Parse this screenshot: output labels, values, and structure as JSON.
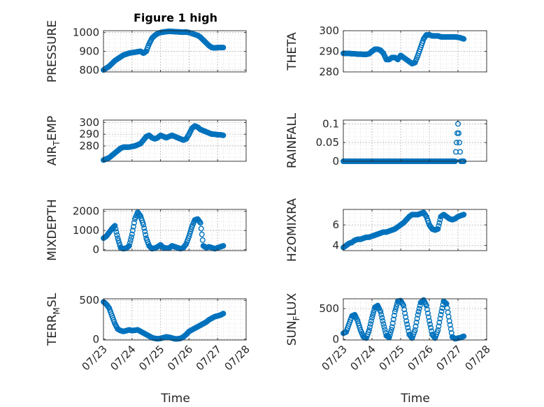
{
  "figure": {
    "title": "Figure 1 high",
    "xlabel": "Time"
  },
  "colors": {
    "marker": "#0072BD",
    "axis": "#262626",
    "grid": "#b8b8b8"
  },
  "chart_data": [
    {
      "type": "scatter",
      "ylabel": "PRESSURE",
      "ylim": [
        790,
        1010
      ],
      "yticks": [
        800,
        900,
        1000
      ],
      "xlim": [
        0,
        5
      ],
      "grid": true,
      "x": [
        0,
        0.1,
        0.2,
        0.3,
        0.4,
        0.5,
        0.6,
        0.7,
        0.8,
        0.9,
        1.0,
        1.1,
        1.2,
        1.3,
        1.4,
        1.5,
        1.6,
        1.7,
        1.8,
        1.9,
        2.0,
        2.1,
        2.2,
        2.3,
        2.4,
        2.5,
        2.6,
        2.7,
        2.8,
        2.9,
        3.0,
        3.1,
        3.2,
        3.3,
        3.4,
        3.5,
        3.6,
        3.7,
        3.8,
        3.9,
        4.0,
        4.1,
        4.2
      ],
      "y": [
        800,
        810,
        820,
        835,
        850,
        860,
        870,
        880,
        885,
        890,
        893,
        895,
        898,
        900,
        890,
        900,
        940,
        970,
        985,
        995,
        1000,
        1003,
        1005,
        1007,
        1006,
        1005,
        1004,
        1003,
        1002,
        1003,
        1000,
        995,
        990,
        985,
        975,
        960,
        945,
        930,
        920,
        918,
        920,
        920,
        920
      ]
    },
    {
      "type": "scatter",
      "ylabel": "THETA",
      "ylim": [
        280,
        300
      ],
      "yticks": [
        280,
        290,
        300
      ],
      "xlim": [
        0,
        5
      ],
      "grid": true,
      "x": [
        0,
        0.1,
        0.2,
        0.3,
        0.4,
        0.5,
        0.6,
        0.7,
        0.8,
        0.9,
        1.0,
        1.1,
        1.2,
        1.3,
        1.4,
        1.5,
        1.6,
        1.7,
        1.8,
        1.9,
        2.0,
        2.1,
        2.2,
        2.3,
        2.4,
        2.5,
        2.6,
        2.7,
        2.8,
        2.9,
        3.0,
        3.1,
        3.2,
        3.3,
        3.4,
        3.5,
        3.6,
        3.7,
        3.8,
        3.9,
        4.0,
        4.1,
        4.2
      ],
      "y": [
        289,
        289,
        289,
        288.8,
        288.8,
        288.6,
        288.6,
        288.5,
        288.5,
        288.8,
        290,
        291,
        291,
        290.5,
        289,
        286,
        286,
        287,
        287,
        286,
        288,
        287,
        286,
        285,
        284,
        284.5,
        288,
        292,
        296,
        298,
        298,
        297.5,
        297.5,
        297.5,
        297,
        297,
        297,
        297,
        297,
        297,
        296.8,
        296.5,
        296
      ]
    },
    {
      "type": "scatter",
      "ylabel": "AIR_TEMP",
      "ylim": [
        267,
        302
      ],
      "yticks": [
        280,
        290,
        300
      ],
      "xlim": [
        0,
        5
      ],
      "grid": true,
      "x": [
        0,
        0.1,
        0.2,
        0.3,
        0.4,
        0.5,
        0.6,
        0.7,
        0.8,
        0.9,
        1.0,
        1.1,
        1.2,
        1.3,
        1.4,
        1.5,
        1.6,
        1.7,
        1.8,
        1.9,
        2.0,
        2.1,
        2.2,
        2.3,
        2.4,
        2.5,
        2.6,
        2.7,
        2.8,
        2.9,
        3.0,
        3.1,
        3.2,
        3.3,
        3.4,
        3.5,
        3.6,
        3.7,
        3.8,
        3.9,
        4.0,
        4.1,
        4.2
      ],
      "y": [
        268,
        269,
        270,
        272,
        274,
        276,
        278,
        279,
        279,
        279,
        279.5,
        280,
        281,
        282,
        285,
        288,
        289,
        287,
        286,
        287,
        289,
        288,
        287,
        288,
        289,
        288,
        287,
        286,
        285,
        286,
        290,
        295,
        297,
        296,
        294,
        293,
        292,
        291,
        290,
        290,
        289.5,
        289.5,
        289
      ]
    },
    {
      "type": "scatter",
      "ylabel": "RAINFALL",
      "ylim": [
        0,
        0.11
      ],
      "yticks": [
        0,
        0.05,
        0.1
      ],
      "xlim": [
        0,
        5
      ],
      "grid": true,
      "x": [
        0,
        0.1,
        0.2,
        0.3,
        0.4,
        0.5,
        0.6,
        0.7,
        0.8,
        0.9,
        1.0,
        1.1,
        1.2,
        1.3,
        1.4,
        1.5,
        1.6,
        1.7,
        1.8,
        1.9,
        2.0,
        2.1,
        2.2,
        2.3,
        2.4,
        2.5,
        2.6,
        2.7,
        2.8,
        2.9,
        3.0,
        3.1,
        3.2,
        3.3,
        3.4,
        3.5,
        3.6,
        3.7,
        3.8,
        3.9,
        4.0,
        4.1,
        4.2
      ],
      "y": [
        0,
        0,
        0,
        0,
        0,
        0,
        0,
        0,
        0,
        0,
        0,
        0,
        0,
        0,
        0,
        0,
        0,
        0,
        0,
        0,
        0,
        0,
        0,
        0,
        0,
        0,
        0,
        0,
        0,
        0,
        0,
        0,
        0,
        0,
        0,
        0,
        0,
        0,
        0,
        0,
        0.1,
        0,
        0
      ]
    },
    {
      "type": "scatter",
      "ylabel": "MIXDEPTH",
      "ylim": [
        -50,
        2100
      ],
      "yticks": [
        0,
        1000,
        2000
      ],
      "xlim": [
        0,
        5
      ],
      "grid": true,
      "x": [
        0,
        0.1,
        0.2,
        0.3,
        0.4,
        0.5,
        0.6,
        0.7,
        0.8,
        0.9,
        1.0,
        1.1,
        1.2,
        1.3,
        1.4,
        1.5,
        1.6,
        1.7,
        1.8,
        1.9,
        2.0,
        2.1,
        2.2,
        2.3,
        2.4,
        2.5,
        2.6,
        2.7,
        2.8,
        2.9,
        3.0,
        3.1,
        3.2,
        3.3,
        3.4,
        3.5,
        3.6,
        3.7,
        3.8,
        3.9,
        4.0,
        4.1,
        4.2
      ],
      "y": [
        600,
        700,
        900,
        1100,
        1250,
        600,
        100,
        50,
        80,
        200,
        800,
        1600,
        1950,
        1750,
        1300,
        600,
        200,
        50,
        80,
        150,
        250,
        100,
        80,
        80,
        200,
        150,
        100,
        50,
        100,
        300,
        700,
        1200,
        1550,
        1600,
        1400,
        200,
        100,
        150,
        100,
        50,
        100,
        150,
        200
      ]
    },
    {
      "type": "scatter",
      "ylabel": "H2OMIXRA",
      "ylim": [
        3.5,
        7.5
      ],
      "yticks": [
        4,
        6
      ],
      "xlim": [
        0,
        5
      ],
      "grid": true,
      "x": [
        0,
        0.1,
        0.2,
        0.3,
        0.4,
        0.5,
        0.6,
        0.7,
        0.8,
        0.9,
        1.0,
        1.1,
        1.2,
        1.3,
        1.4,
        1.5,
        1.6,
        1.7,
        1.8,
        1.9,
        2.0,
        2.1,
        2.2,
        2.3,
        2.4,
        2.5,
        2.6,
        2.7,
        2.8,
        2.9,
        3.0,
        3.1,
        3.2,
        3.3,
        3.4,
        3.5,
        3.6,
        3.7,
        3.8,
        3.9,
        4.0,
        4.1,
        4.2
      ],
      "y": [
        3.8,
        4.0,
        4.2,
        4.3,
        4.5,
        4.6,
        4.6,
        4.7,
        4.8,
        4.8,
        4.9,
        5.0,
        5.1,
        5.2,
        5.3,
        5.3,
        5.4,
        5.5,
        5.6,
        5.8,
        6.0,
        6.2,
        6.5,
        6.8,
        7.0,
        7.0,
        7.0,
        7.1,
        7.2,
        6.8,
        6.0,
        5.6,
        5.5,
        5.6,
        6.8,
        7.0,
        6.8,
        6.6,
        6.5,
        6.6,
        6.8,
        6.9,
        7.0
      ]
    },
    {
      "type": "scatter",
      "ylabel": "TERR_MSL",
      "ylim": [
        -10,
        520
      ],
      "yticks": [
        0,
        500
      ],
      "xlim": [
        0,
        5
      ],
      "grid": true,
      "x": [
        0,
        0.1,
        0.2,
        0.3,
        0.4,
        0.5,
        0.6,
        0.7,
        0.8,
        0.9,
        1.0,
        1.1,
        1.2,
        1.3,
        1.4,
        1.5,
        1.6,
        1.7,
        1.8,
        1.9,
        2.0,
        2.1,
        2.2,
        2.3,
        2.4,
        2.5,
        2.6,
        2.7,
        2.8,
        2.9,
        3.0,
        3.1,
        3.2,
        3.3,
        3.4,
        3.5,
        3.6,
        3.7,
        3.8,
        3.9,
        4.0,
        4.1,
        4.2
      ],
      "y": [
        480,
        450,
        400,
        300,
        200,
        130,
        110,
        100,
        110,
        120,
        110,
        115,
        120,
        100,
        80,
        60,
        40,
        20,
        10,
        5,
        10,
        20,
        30,
        25,
        15,
        5,
        5,
        10,
        30,
        60,
        100,
        120,
        140,
        160,
        180,
        200,
        220,
        250,
        270,
        290,
        300,
        310,
        330
      ]
    },
    {
      "type": "scatter",
      "ylabel": "SUN_FLUX",
      "ylim": [
        -10,
        660
      ],
      "yticks": [
        0,
        500
      ],
      "xlim": [
        0,
        5
      ],
      "grid": true,
      "x": [
        0,
        0.1,
        0.2,
        0.3,
        0.4,
        0.5,
        0.6,
        0.7,
        0.8,
        0.9,
        1.0,
        1.1,
        1.2,
        1.3,
        1.4,
        1.5,
        1.6,
        1.7,
        1.8,
        1.9,
        2.0,
        2.1,
        2.2,
        2.3,
        2.4,
        2.5,
        2.6,
        2.7,
        2.8,
        2.9,
        3.0,
        3.1,
        3.2,
        3.3,
        3.4,
        3.5,
        3.6,
        3.7,
        3.8,
        3.9,
        4.0,
        4.1,
        4.2
      ],
      "y": [
        100,
        120,
        250,
        380,
        400,
        300,
        150,
        40,
        20,
        150,
        350,
        520,
        550,
        450,
        250,
        60,
        30,
        200,
        450,
        620,
        630,
        550,
        300,
        80,
        20,
        150,
        400,
        600,
        640,
        550,
        300,
        80,
        20,
        150,
        400,
        620,
        580,
        300,
        40,
        10,
        20,
        30,
        50
      ]
    }
  ],
  "xticks": [
    "07/23",
    "07/24",
    "07/25",
    "07/26",
    "07/27",
    "07/28"
  ]
}
